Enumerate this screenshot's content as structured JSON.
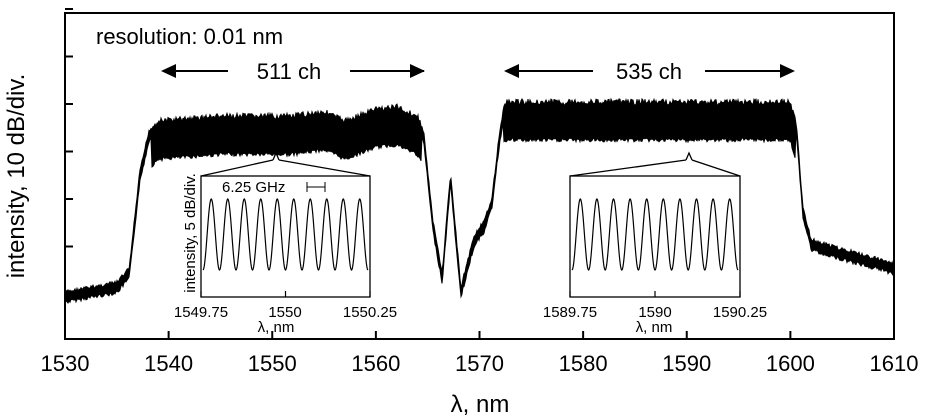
{
  "chart_data": [
    {
      "type": "line",
      "xlabel": "λ, nm",
      "ylabel": "intensity, 10 dB/div.",
      "xlim": [
        1530,
        1610
      ],
      "x_ticks": [
        "1530",
        "1540",
        "1550",
        "1560",
        "1570",
        "1580",
        "1590",
        "1600",
        "1610"
      ],
      "y_divisions": 6,
      "y_ticklabels_shown": false,
      "grid": false,
      "annotations": [
        {
          "text": "resolution: 0.01 nm"
        },
        {
          "text": "511 ch",
          "from_x": 1539.3,
          "to_x": 1564.5
        },
        {
          "text": "535 ch",
          "from_x": 1572.5,
          "to_x": 1600.4
        }
      ],
      "series": [
        {
          "x": [
            1530,
            1535,
            1536.2,
            1537.2,
            1538.1,
            1539,
            1545,
            1552,
            1555,
            1557,
            1560,
            1562,
            1564,
            1564.6,
            1565.5,
            1566.4,
            1567.2,
            1568.2,
            1569.5,
            1570.5,
            1571.2,
            1571.8,
            1572.4,
            1580,
            1590,
            1600,
            1600.6,
            1601.2,
            1602,
            1605,
            1610
          ],
          "y": [
            0.0,
            0.2,
            0.5,
            2.5,
            3.4,
            3.6,
            3.7,
            3.7,
            3.8,
            3.6,
            3.85,
            3.9,
            3.7,
            3.4,
            1.5,
            0.4,
            2.5,
            0.1,
            1.2,
            1.5,
            2.0,
            3.1,
            4.0,
            4.0,
            4.0,
            4.0,
            3.5,
            1.8,
            1.1,
            0.9,
            0.6
          ]
        }
      ]
    },
    {
      "type": "line",
      "xlabel": "λ, nm",
      "ylabel": "intensity, 5 dB/div.",
      "xlim": [
        1549.75,
        1550.25
      ],
      "x_ticks": [
        "1549.75",
        "1550",
        "1550.25"
      ],
      "annotations": [
        {
          "text": "6.25 GHz"
        }
      ],
      "series": [
        {
          "x": [
            1549.75,
            1550.25
          ],
          "y": [
            0,
            0
          ],
          "description_values": {
            "periods": 10
          }
        }
      ]
    },
    {
      "type": "line",
      "xlabel": "λ, nm",
      "ylabel": "",
      "xlim": [
        1589.75,
        1590.25
      ],
      "x_ticks": [
        "1589.75",
        "1590",
        "1590.25"
      ],
      "series": [
        {
          "x": [
            1589.75,
            1590.25
          ],
          "y": [
            0,
            0
          ],
          "description_values": {
            "periods": 10
          }
        }
      ]
    }
  ]
}
